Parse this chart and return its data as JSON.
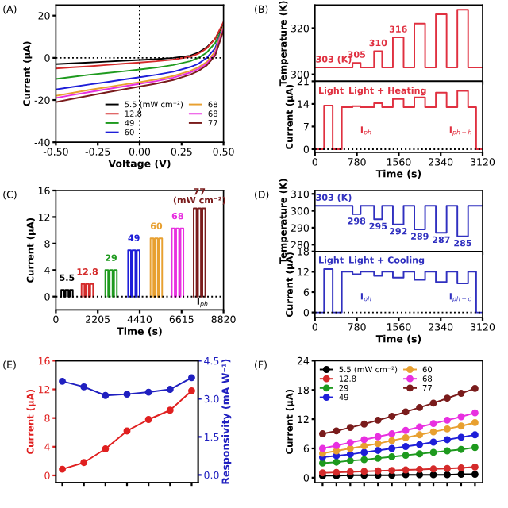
{
  "chart_data": [
    {
      "type": "line",
      "xlabel": "Voltage (V)",
      "ylabel": "Current (μA)",
      "xlim": [
        -0.5,
        0.5
      ],
      "xticks": [
        {
          "value": -0.5,
          "label": "-0.50"
        },
        {
          "value": -0.25,
          "label": "-0.25"
        },
        {
          "value": 0,
          "label": "0.00"
        },
        {
          "value": 0.25,
          "label": "0.25"
        },
        {
          "value": 0.5,
          "label": "0.50"
        }
      ],
      "ylim": [
        -40,
        25
      ],
      "yticks": [
        -40,
        -20,
        0,
        20
      ],
      "legend": "lower right",
      "annotations": [
        "(A)"
      ],
      "ref_lines": [
        {
          "axis": "x",
          "value": 0,
          "line_style": "dotted",
          "color": "#000000"
        },
        {
          "axis": "y",
          "value": 0,
          "line_style": "dotted",
          "color": "#000000"
        }
      ],
      "series": [
        {
          "name": "5.5 (mW cm⁻²)",
          "color": "#000000",
          "x": [
            -0.5,
            -0.4,
            -0.3,
            -0.2,
            -0.1,
            0,
            0.1,
            0.2,
            0.3,
            0.35,
            0.4,
            0.45,
            0.5
          ],
          "values": [
            -3,
            -2.6,
            -2.2,
            -1.8,
            -1.4,
            -1,
            -0.6,
            0,
            1,
            2.5,
            5,
            9,
            16
          ]
        },
        {
          "name": "12.8",
          "color": "#d42a2a",
          "x": [
            -0.5,
            -0.4,
            -0.3,
            -0.2,
            -0.1,
            0,
            0.1,
            0.2,
            0.3,
            0.35,
            0.4,
            0.45,
            0.5
          ],
          "values": [
            -5,
            -4.5,
            -4,
            -3.4,
            -2.8,
            -2.2,
            -1.6,
            -0.8,
            0.5,
            2,
            4.5,
            9,
            17
          ]
        },
        {
          "name": "49",
          "color": "#1e9a1e",
          "x": [
            -0.5,
            -0.4,
            -0.3,
            -0.2,
            -0.1,
            0,
            0.1,
            0.2,
            0.3,
            0.35,
            0.4,
            0.45,
            0.5
          ],
          "values": [
            -10,
            -9,
            -8,
            -7.2,
            -6.4,
            -5.5,
            -4.6,
            -3.4,
            -1.6,
            0,
            2.5,
            7,
            15
          ]
        },
        {
          "name": "60",
          "color": "#1e1ed8",
          "x": [
            -0.5,
            -0.4,
            -0.3,
            -0.2,
            -0.1,
            0,
            0.1,
            0.2,
            0.3,
            0.35,
            0.4,
            0.45,
            0.5
          ],
          "values": [
            -15,
            -13.8,
            -12.6,
            -11.5,
            -10.3,
            -9.2,
            -8,
            -6.6,
            -4.4,
            -2.8,
            0,
            4.5,
            15
          ]
        },
        {
          "name": "68",
          "color": "#e8a030",
          "x": [
            -0.5,
            -0.4,
            -0.3,
            -0.2,
            -0.1,
            0,
            0.1,
            0.2,
            0.3,
            0.35,
            0.4,
            0.45,
            0.5
          ],
          "values": [
            -18,
            -16.6,
            -15.2,
            -14,
            -12.7,
            -11.5,
            -10.2,
            -8.6,
            -6.2,
            -4.5,
            -2,
            3,
            15
          ]
        },
        {
          "name": "68",
          "color": "#e830e0",
          "x": [
            -0.5,
            -0.4,
            -0.3,
            -0.2,
            -0.1,
            0,
            0.1,
            0.2,
            0.3,
            0.35,
            0.4,
            0.45,
            0.5
          ],
          "values": [
            -19,
            -17.6,
            -16.2,
            -14.9,
            -13.6,
            -12.3,
            -11,
            -9.4,
            -7,
            -5.3,
            -2.8,
            2,
            14
          ]
        },
        {
          "name": "77",
          "color": "#7a1c1c",
          "x": [
            -0.5,
            -0.4,
            -0.3,
            -0.2,
            -0.1,
            0,
            0.1,
            0.2,
            0.3,
            0.35,
            0.4,
            0.45,
            0.5
          ],
          "values": [
            -21,
            -19.4,
            -17.9,
            -16.4,
            -15,
            -13.6,
            -12.2,
            -10.5,
            -8,
            -6.2,
            -3.6,
            1,
            13
          ]
        }
      ]
    },
    {
      "type": "line",
      "ylabel": "Temperature (K)",
      "xlim": [
        0,
        3120
      ],
      "xticks": [
        0,
        780,
        1560,
        2340,
        3120
      ],
      "ylim": [
        297,
        330
      ],
      "yticks": [
        300,
        320
      ],
      "tick_labels": "y",
      "annotations": [
        "(B)",
        {
          "text": "303 (K)",
          "x": 350,
          "y": 303
        },
        {
          "text": "305",
          "x": 775,
          "y": 305
        },
        {
          "text": "310",
          "x": 1175,
          "y": 310
        },
        {
          "text": "316",
          "x": 1550,
          "y": 316
        }
      ],
      "series": [
        {
          "color": "#e03040",
          "x": [
            0,
            700,
            700,
            850,
            850,
            1100,
            1100,
            1250,
            1250,
            1450,
            1450,
            1650,
            1650,
            1850,
            1850,
            2050,
            2050,
            2250,
            2250,
            2450,
            2450,
            2650,
            2650,
            2850,
            2850,
            3120
          ],
          "values": [
            303,
            303,
            305,
            305,
            303,
            303,
            310,
            310,
            303,
            303,
            316,
            316,
            303,
            303,
            322,
            322,
            303,
            303,
            326,
            326,
            303,
            303,
            328,
            328,
            303,
            303
          ]
        }
      ]
    },
    {
      "type": "line",
      "xlabel": "Time (s)",
      "ylabel": "Current (μA)",
      "xlim": [
        0,
        3120
      ],
      "xticks": [
        0,
        780,
        1560,
        2340,
        3120
      ],
      "ylim": [
        -1,
        21
      ],
      "yticks": [
        0,
        7,
        14,
        21
      ],
      "annotations": [
        "Light",
        "Light + Heating",
        "I$_{ph}$",
        "I$_{ph+h}$"
      ],
      "ref_lines": [
        {
          "axis": "y",
          "value": 0,
          "line_style": "dotted",
          "color": "#000000"
        }
      ],
      "series": [
        {
          "color": "#e03040",
          "x": [
            0,
            170,
            170,
            330,
            330,
            500,
            500,
            700,
            700,
            850,
            850,
            1100,
            1100,
            1250,
            1250,
            1450,
            1450,
            1650,
            1650,
            1850,
            1850,
            2050,
            2050,
            2250,
            2250,
            2450,
            2450,
            2650,
            2650,
            2850,
            2850,
            3000,
            3000,
            3120
          ],
          "values": [
            0,
            0,
            13.5,
            13.5,
            0,
            0,
            13,
            13,
            13.3,
            13.3,
            13,
            13,
            14.2,
            14.2,
            13,
            13,
            15.5,
            15.5,
            13,
            13,
            16,
            16,
            13,
            13,
            17.5,
            17.5,
            13,
            13,
            18,
            18,
            13,
            13,
            0,
            0
          ]
        }
      ]
    },
    {
      "type": "line",
      "xlabel": "Time (s)",
      "ylabel": "Current (μA)",
      "xlim": [
        0,
        8820
      ],
      "xticks": [
        0,
        2205,
        4410,
        6615,
        8820
      ],
      "ylim": [
        -2,
        16
      ],
      "yticks": [
        0,
        4,
        8,
        12,
        16
      ],
      "annotations": [
        {
          "text": "5.5",
          "x": 585,
          "y": 1.6
        },
        {
          "text": "12.8",
          "x": 1655,
          "y": 2.5
        },
        {
          "text": "29",
          "x": 2905,
          "y": 4.6
        },
        {
          "text": "49",
          "x": 4105,
          "y": 7.6
        },
        {
          "text": "60",
          "x": 5285,
          "y": 9.4
        },
        {
          "text": "68",
          "x": 6405,
          "y": 10.9
        },
        {
          "text": "77\n(mW cm⁻²)",
          "x": 7555,
          "y": 13.3
        },
        "I$_{ph}$",
        "(C)"
      ],
      "ref_lines": [
        {
          "axis": "y",
          "value": 0,
          "line_style": "dotted",
          "color": "#000000"
        }
      ],
      "series": [
        {
          "color": "#000000",
          "x": [
            280,
            280,
            430,
            430,
            510,
            510,
            660,
            660,
            740,
            740,
            890,
            890
          ],
          "values": [
            0,
            1.0,
            1.0,
            0,
            0,
            1.0,
            1.0,
            0,
            0,
            1.0,
            1.0,
            0
          ]
        },
        {
          "color": "#d42a2a",
          "x": [
            1350,
            1350,
            1500,
            1500,
            1580,
            1580,
            1730,
            1730,
            1810,
            1810,
            1960,
            1960
          ],
          "values": [
            0,
            1.9,
            1.9,
            0,
            0,
            1.9,
            1.9,
            0,
            0,
            1.9,
            1.9,
            0
          ]
        },
        {
          "color": "#1e9a1e",
          "x": [
            2600,
            2600,
            2750,
            2750,
            2830,
            2830,
            2980,
            2980,
            3060,
            3060,
            3210,
            3210
          ],
          "values": [
            0,
            4.0,
            4.0,
            0,
            0,
            4.0,
            4.0,
            0,
            0,
            4.0,
            4.0,
            0
          ]
        },
        {
          "color": "#1e1ed8",
          "x": [
            3800,
            3800,
            3950,
            3950,
            4030,
            4030,
            4180,
            4180,
            4260,
            4260,
            4410,
            4410
          ],
          "values": [
            0,
            7.0,
            7.0,
            0,
            0,
            7.0,
            7.0,
            0,
            0,
            7.0,
            7.0,
            0
          ]
        },
        {
          "color": "#e8a030",
          "x": [
            4980,
            4980,
            5130,
            5130,
            5210,
            5210,
            5360,
            5360,
            5440,
            5440,
            5590,
            5590
          ],
          "values": [
            0,
            8.8,
            8.8,
            0,
            0,
            8.8,
            8.8,
            0,
            0,
            8.8,
            8.8,
            0
          ]
        },
        {
          "color": "#e830e0",
          "x": [
            6100,
            6100,
            6250,
            6250,
            6330,
            6330,
            6480,
            6480,
            6560,
            6560,
            6710,
            6710
          ],
          "values": [
            0,
            10.3,
            10.3,
            0,
            0,
            10.3,
            10.3,
            0,
            0,
            10.3,
            10.3,
            0
          ]
        },
        {
          "color": "#7a1c1c",
          "x": [
            7250,
            7250,
            7400,
            7400,
            7480,
            7480,
            7630,
            7630,
            7710,
            7710,
            7860,
            7860
          ],
          "values": [
            0,
            13.3,
            13.3,
            0,
            0,
            13.3,
            13.3,
            0,
            0,
            13.3,
            13.3,
            0
          ]
        }
      ]
    },
    {
      "type": "line",
      "ylabel": "Temperature (K)",
      "xlim": [
        0,
        3120
      ],
      "xticks": [
        0,
        780,
        1560,
        2340,
        3120
      ],
      "ylim": [
        276,
        312
      ],
      "yticks": [
        280,
        290,
        300,
        310
      ],
      "tick_labels": "y",
      "annotations": [
        "(D)",
        {
          "text": "303 (K)",
          "x": 350,
          "y": 303
        },
        {
          "text": "298",
          "x": 775,
          "y": 298
        },
        {
          "text": "295",
          "x": 1175,
          "y": 295
        },
        {
          "text": "292",
          "x": 1550,
          "y": 292
        },
        {
          "text": "289",
          "x": 1950,
          "y": 289
        },
        {
          "text": "287",
          "x": 2350,
          "y": 287
        },
        {
          "text": "285",
          "x": 2750,
          "y": 285
        }
      ],
      "series": [
        {
          "color": "#3030c0",
          "x": [
            0,
            700,
            700,
            850,
            850,
            1100,
            1100,
            1250,
            1250,
            1450,
            1450,
            1650,
            1650,
            1850,
            1850,
            2050,
            2050,
            2250,
            2250,
            2450,
            2450,
            2650,
            2650,
            2850,
            2850,
            3120
          ],
          "values": [
            303,
            303,
            298,
            298,
            303,
            303,
            295,
            295,
            303,
            303,
            292,
            292,
            303,
            303,
            289,
            289,
            303,
            303,
            287,
            287,
            303,
            303,
            285,
            285,
            303,
            303
          ]
        }
      ]
    },
    {
      "type": "line",
      "xlabel": "Time (s)",
      "ylabel": "Current (μA)",
      "xlim": [
        0,
        3120
      ],
      "xticks": [
        0,
        780,
        1560,
        2340,
        3120
      ],
      "ylim": [
        -1.5,
        18
      ],
      "yticks": [
        0,
        6,
        12,
        18
      ],
      "annotations": [
        "Light",
        "Light + Cooling",
        "I$_{ph}$",
        "I$_{ph+c}$"
      ],
      "ref_lines": [
        {
          "axis": "y",
          "value": 0,
          "line_style": "dotted",
          "color": "#000000"
        }
      ],
      "series": [
        {
          "color": "#3030c0",
          "x": [
            0,
            170,
            170,
            330,
            330,
            500,
            500,
            700,
            700,
            850,
            850,
            1100,
            1100,
            1250,
            1250,
            1450,
            1450,
            1650,
            1650,
            1850,
            1850,
            2050,
            2050,
            2250,
            2250,
            2450,
            2450,
            2650,
            2650,
            2850,
            2850,
            3000,
            3000,
            3120
          ],
          "values": [
            0,
            0,
            12.8,
            12.8,
            0,
            0,
            12,
            12,
            11.3,
            11.3,
            12,
            12,
            10.8,
            10.8,
            12,
            12,
            10.3,
            10.3,
            12,
            12,
            9.6,
            9.6,
            12,
            12,
            9.0,
            9.0,
            12,
            12,
            8.6,
            8.6,
            12,
            12,
            0,
            0
          ]
        }
      ]
    },
    {
      "type": "line",
      "ylabel": "Current (μA)",
      "y2label": "Responsivity (mA W⁻¹)",
      "categories": [
        null,
        null,
        null,
        null,
        null,
        null,
        null
      ],
      "ylim": [
        -1,
        16
      ],
      "yticks": [
        0,
        4,
        8,
        12,
        16
      ],
      "y2lim": [
        -0.3,
        4.5
      ],
      "y2ticks": [
        {
          "value": 0,
          "label": "0.0"
        },
        {
          "value": 1.5,
          "label": "1.5"
        },
        {
          "value": 3,
          "label": "3.0"
        },
        {
          "value": 4.5,
          "label": "4.5"
        }
      ],
      "tick_labels": "y",
      "marker": "circle",
      "annotations": [
        "(E)"
      ],
      "series": [
        {
          "color": "#e02020",
          "values": [
            0.87,
            1.8,
            3.7,
            6.2,
            7.8,
            9.1,
            11.8
          ]
        },
        {
          "color": "#2020c0",
          "axis": "y2",
          "values": [
            3.69,
            3.47,
            3.13,
            3.18,
            3.26,
            3.37,
            3.83
          ]
        }
      ]
    },
    {
      "type": "line",
      "ylabel": "Current (μA)",
      "ylim": [
        -1,
        24
      ],
      "yticks": [
        0,
        6,
        12,
        18,
        24
      ],
      "tick_labels": "y",
      "marker": "circle",
      "legend": "upper left",
      "categories": [
        null,
        null,
        null,
        null,
        null,
        null,
        null,
        null,
        null,
        null,
        null,
        null
      ],
      "annotations": [
        "(F)"
      ],
      "series": [
        {
          "name": "5.5 (mW cm⁻²)",
          "color": "#000000",
          "values": [
            0.4,
            0.4,
            0.5,
            0.5,
            0.5,
            0.5,
            0.6,
            0.6,
            0.6,
            0.6,
            0.7,
            0.7
          ]
        },
        {
          "name": "12.8",
          "color": "#d42a2a",
          "values": [
            1.0,
            1.1,
            1.2,
            1.3,
            1.4,
            1.5,
            1.6,
            1.7,
            1.8,
            1.9,
            2.0,
            2.2
          ]
        },
        {
          "name": "29",
          "color": "#1e9a1e",
          "values": [
            3.0,
            3.2,
            3.5,
            3.7,
            4.0,
            4.3,
            4.6,
            4.9,
            5.2,
            5.5,
            5.8,
            6.2
          ]
        },
        {
          "name": "49",
          "color": "#1e1ed8",
          "values": [
            4.2,
            4.5,
            4.8,
            5.2,
            5.6,
            6.0,
            6.4,
            6.8,
            7.3,
            7.8,
            8.3,
            8.8
          ]
        },
        {
          "name": "60",
          "color": "#e8a030",
          "values": [
            5.0,
            5.5,
            6.0,
            6.5,
            7.0,
            7.6,
            8.2,
            8.8,
            9.4,
            10.0,
            10.6,
            11.3
          ]
        },
        {
          "name": "68",
          "color": "#e830e0",
          "values": [
            6.0,
            6.6,
            7.2,
            7.8,
            8.4,
            9.0,
            9.7,
            10.4,
            11.1,
            11.8,
            12.5,
            13.3
          ]
        },
        {
          "name": "77",
          "color": "#7a1c1c",
          "values": [
            9.0,
            9.6,
            10.3,
            11.0,
            11.8,
            12.6,
            13.5,
            14.4,
            15.3,
            16.3,
            17.3,
            18.3
          ]
        }
      ]
    }
  ]
}
